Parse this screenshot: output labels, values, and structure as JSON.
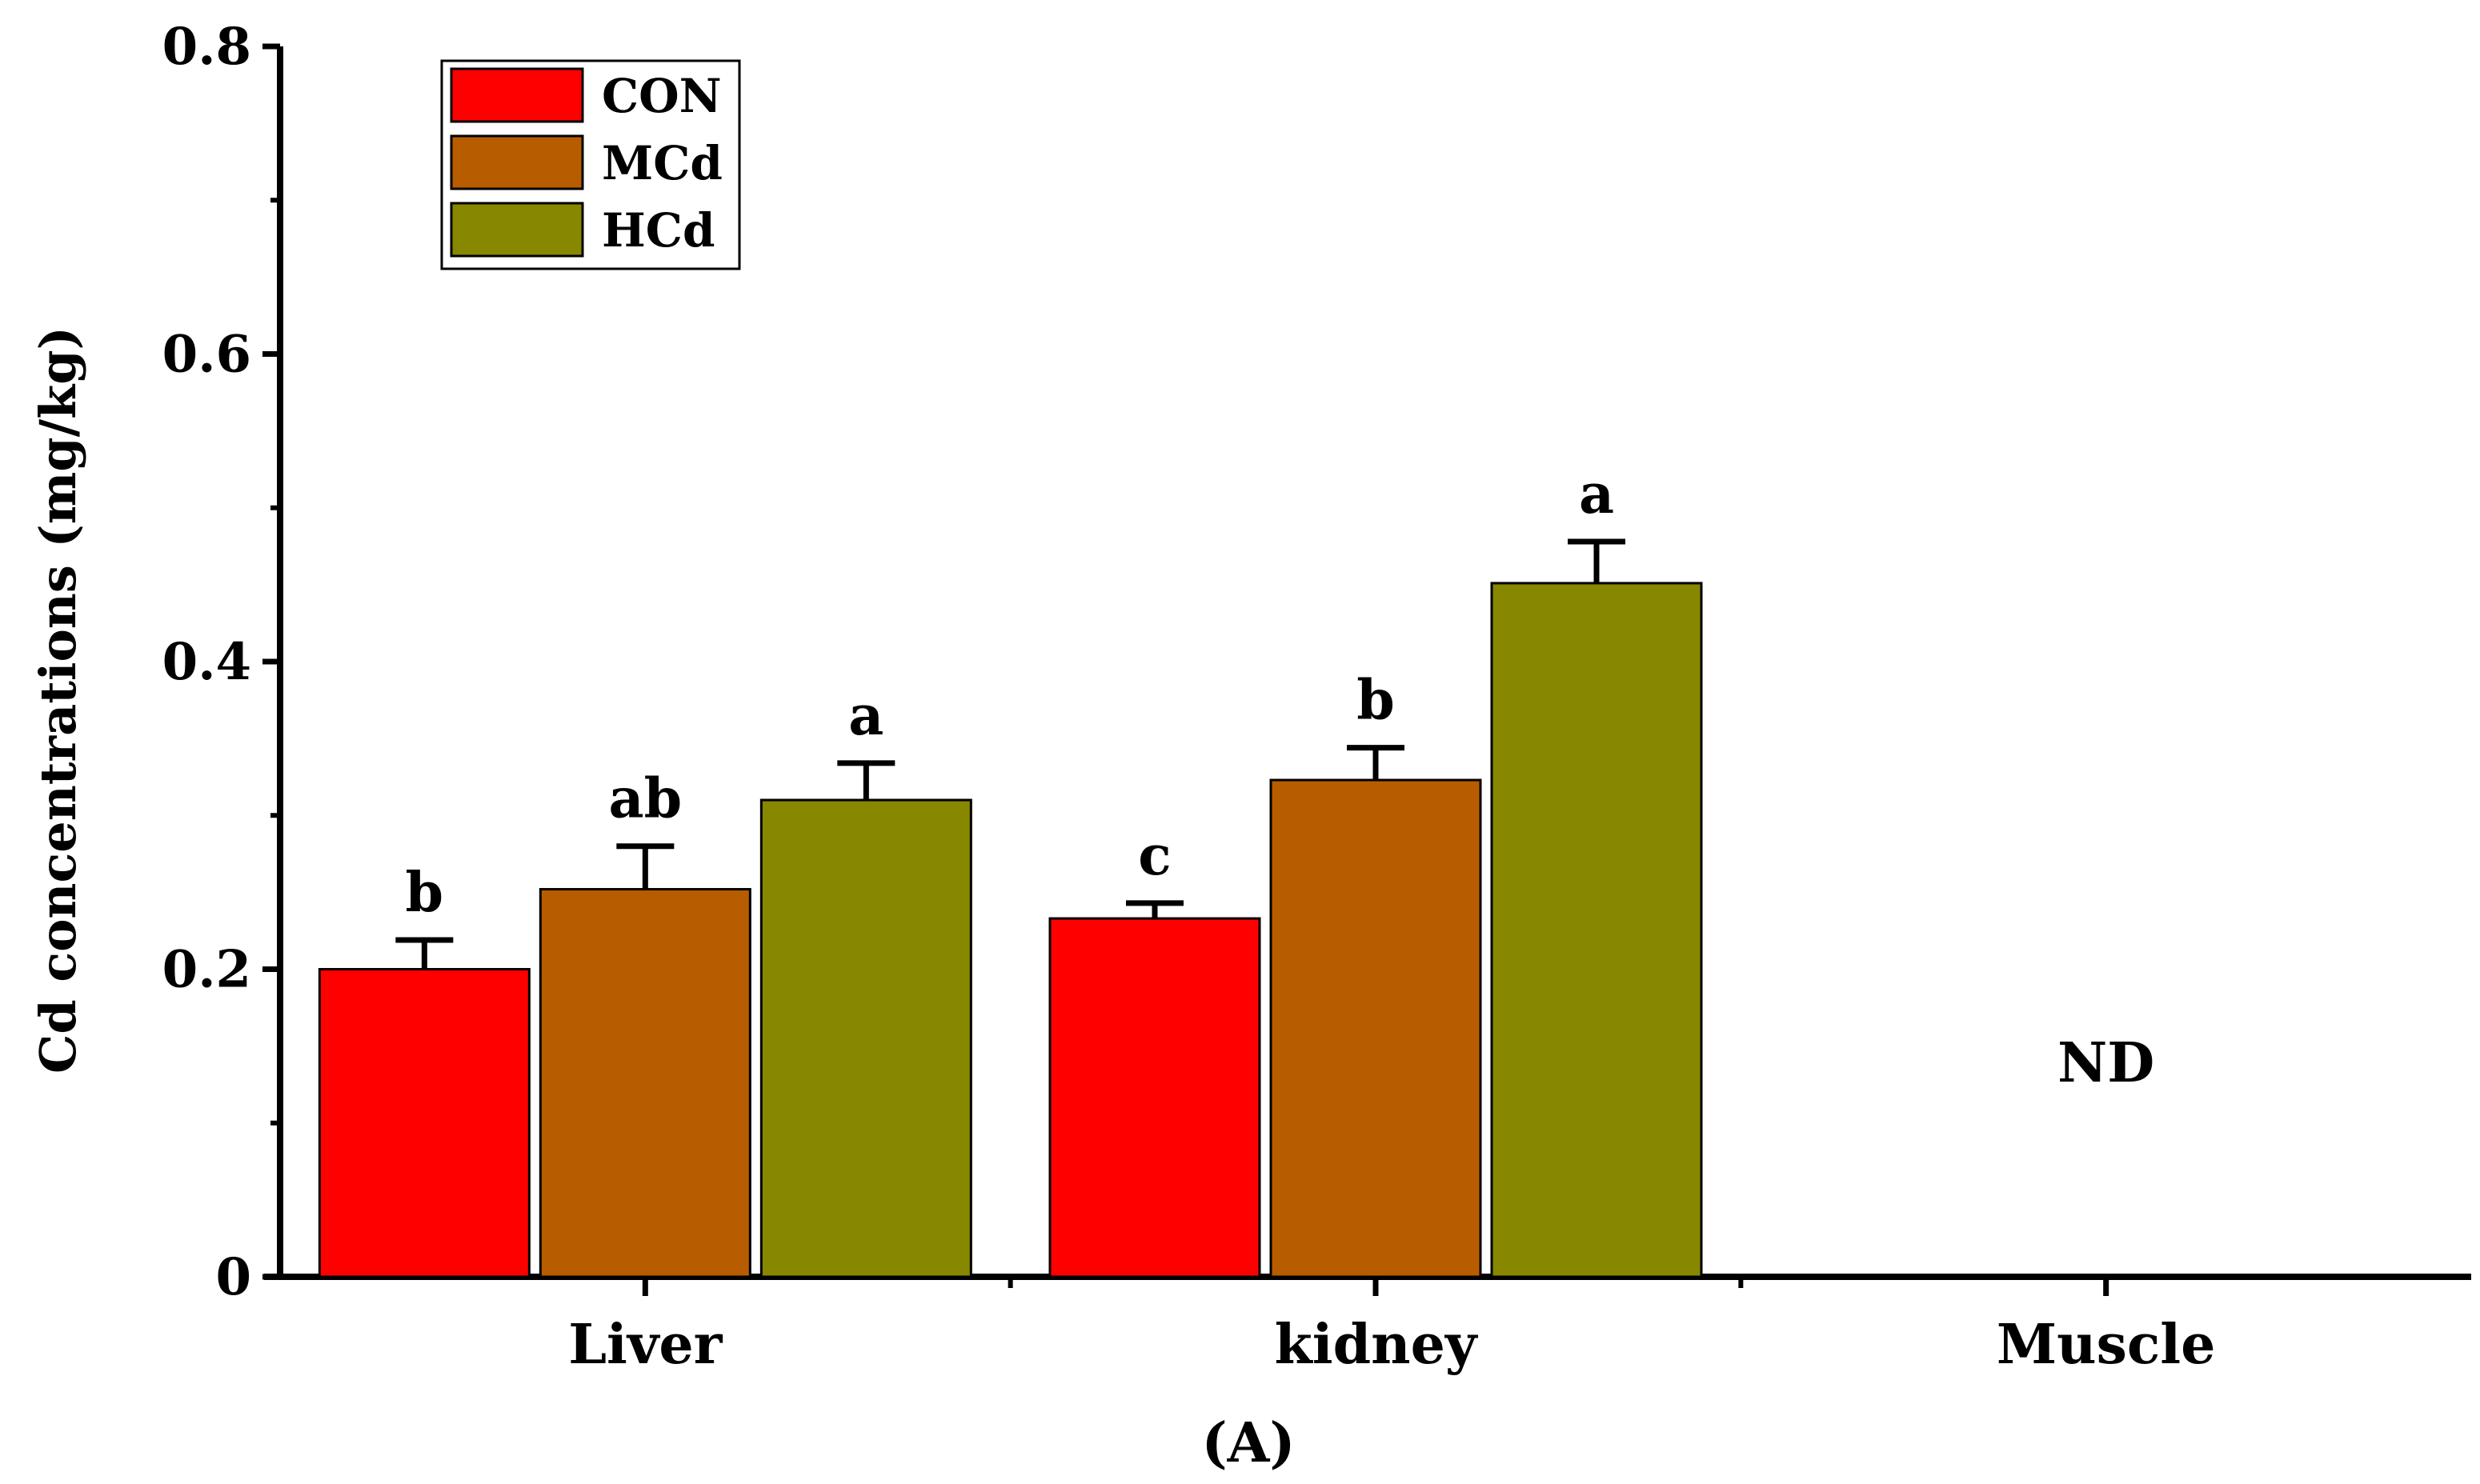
{
  "chart_data": {
    "type": "bar",
    "ylabel": "Cd concentrations (mg/kg)",
    "xlabel": "",
    "ylim": [
      0,
      0.8
    ],
    "yticks": [
      0,
      0.2,
      0.4,
      0.6,
      0.8
    ],
    "ytick_labels": [
      "0",
      "0.2",
      "0.4",
      "0.6",
      "0.8"
    ],
    "categories": [
      "Liver",
      "kidney",
      "Muscle"
    ],
    "series": [
      {
        "name": "CON",
        "color": "#ff0000",
        "values": [
          0.2,
          0.233,
          null
        ],
        "errors": [
          0.019,
          0.01,
          null
        ],
        "labels": [
          "b",
          "c",
          ""
        ]
      },
      {
        "name": "MCd",
        "color": "#b85c00",
        "values": [
          0.252,
          0.323,
          null
        ],
        "errors": [
          0.028,
          0.021,
          null
        ],
        "labels": [
          "ab",
          "b",
          ""
        ]
      },
      {
        "name": "HCd",
        "color": "#878700",
        "values": [
          0.31,
          0.451,
          null
        ],
        "errors": [
          0.024,
          0.027,
          null
        ],
        "labels": [
          "a",
          "a",
          ""
        ]
      }
    ],
    "annotations": [
      {
        "category": "Muscle",
        "text": "ND"
      }
    ],
    "legend_position": "top-left",
    "panel_label": "(A)"
  }
}
